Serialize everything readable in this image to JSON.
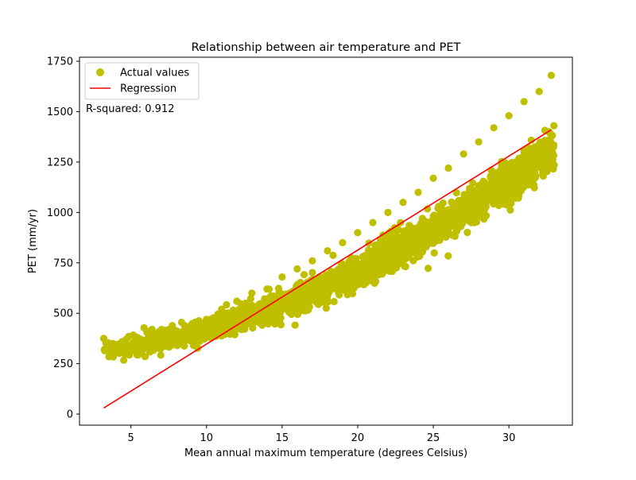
{
  "chart_data": {
    "type": "scatter",
    "title": "Relationship between air temperature and PET",
    "xlabel": "Mean annual maximum temperature (degrees Celsius)",
    "ylabel": "PET (mm/yr)",
    "xlim": [
      1.6,
      34.2
    ],
    "ylim": [
      -55,
      1770
    ],
    "xticks": [
      5,
      10,
      15,
      20,
      25,
      30
    ],
    "yticks": [
      0,
      250,
      500,
      750,
      1000,
      1250,
      1500,
      1750
    ],
    "grid": false,
    "legend_position": "upper-left",
    "annotation": "R-squared: 0.912",
    "series": [
      {
        "name": "Actual values",
        "kind": "scatter",
        "color": "#bfbf00",
        "trend": {
          "a": 0.8,
          "b": 5.0,
          "c": 290,
          "spread": 70,
          "x_min": 3.2,
          "x_max": 33.0,
          "count": 2600
        },
        "points": [
          [
            3.2,
            375
          ],
          [
            3.8,
            350
          ],
          [
            4.3,
            330
          ],
          [
            4.6,
            360
          ],
          [
            5.0,
            320
          ],
          [
            5.3,
            340
          ],
          [
            6.0,
            330
          ],
          [
            6.4,
            420
          ],
          [
            7.0,
            360
          ],
          [
            8.0,
            380
          ],
          [
            9.0,
            420
          ],
          [
            10.0,
            470
          ],
          [
            11.0,
            520
          ],
          [
            12.0,
            560
          ],
          [
            13.0,
            600
          ],
          [
            14.0,
            620
          ],
          [
            15.0,
            680
          ],
          [
            16.0,
            720
          ],
          [
            17.0,
            760
          ],
          [
            18.0,
            810
          ],
          [
            19.0,
            850
          ],
          [
            20.0,
            900
          ],
          [
            21.0,
            950
          ],
          [
            22.0,
            1000
          ],
          [
            23.0,
            1050
          ],
          [
            24.0,
            1100
          ],
          [
            25.0,
            1170
          ],
          [
            26.0,
            1220
          ],
          [
            27.0,
            1290
          ],
          [
            28.0,
            1350
          ],
          [
            29.0,
            1420
          ],
          [
            30.0,
            1480
          ],
          [
            31.0,
            1550
          ],
          [
            32.0,
            1600
          ],
          [
            32.8,
            1680
          ]
        ]
      },
      {
        "name": "Regression",
        "kind": "line",
        "color": "#ff0000",
        "x": [
          3.2,
          32.8
        ],
        "y": [
          30,
          1410
        ]
      }
    ]
  }
}
